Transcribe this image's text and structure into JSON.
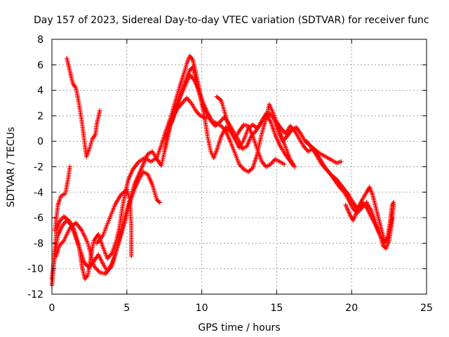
{
  "chart_data": {
    "type": "scatter",
    "title": "Day 157 of 2023, Sidereal Day-to-day VTEC variation (SDTVAR) for receiver func",
    "xlabel": "GPS time / hours",
    "ylabel": "SDTVAR / TECUs",
    "xlim": [
      0,
      25
    ],
    "ylim": [
      -12,
      8
    ],
    "xticks": [
      0,
      5,
      10,
      15,
      20,
      25
    ],
    "yticks": [
      -12,
      -10,
      -8,
      -6,
      -4,
      -2,
      0,
      2,
      4,
      6,
      8
    ],
    "grid": true,
    "marker": "+",
    "color": "#ff0000",
    "series": [
      {
        "name": "track-1",
        "points": [
          [
            0.0,
            -11.3
          ],
          [
            0.1,
            -10.0
          ],
          [
            0.2,
            -8.5
          ],
          [
            0.3,
            -7.0
          ],
          [
            0.5,
            -6.3
          ],
          [
            0.8,
            -5.9
          ],
          [
            1.2,
            -6.3
          ],
          [
            1.5,
            -7.0
          ],
          [
            1.8,
            -8.2
          ],
          [
            2.0,
            -9.8
          ],
          [
            2.2,
            -10.8
          ],
          [
            2.4,
            -10.5
          ],
          [
            2.6,
            -9.0
          ],
          [
            2.8,
            -7.8
          ],
          [
            3.1,
            -7.3
          ],
          [
            3.4,
            -8.3
          ],
          [
            3.7,
            -9.2
          ],
          [
            4.0,
            -8.8
          ],
          [
            4.3,
            -7.8
          ],
          [
            4.5,
            -6.8
          ],
          [
            4.7,
            -5.2
          ],
          [
            4.9,
            -4.0
          ],
          [
            5.1,
            -3.0
          ],
          [
            5.4,
            -2.2
          ],
          [
            5.8,
            -1.6
          ],
          [
            6.2,
            -1.3
          ],
          [
            6.6,
            -1.6
          ],
          [
            7.0,
            -1.3
          ],
          [
            7.3,
            -0.3
          ],
          [
            7.6,
            0.8
          ],
          [
            7.9,
            1.8
          ],
          [
            8.2,
            3.0
          ],
          [
            8.5,
            4.2
          ],
          [
            8.8,
            5.3
          ],
          [
            9.0,
            6.1
          ],
          [
            9.2,
            6.7
          ],
          [
            9.4,
            6.4
          ],
          [
            9.6,
            5.4
          ],
          [
            9.8,
            4.3
          ],
          [
            10.0,
            3.0
          ],
          [
            10.2,
            1.8
          ],
          [
            10.4,
            0.3
          ],
          [
            10.6,
            -0.8
          ],
          [
            10.8,
            -1.3
          ],
          [
            11.0,
            -0.7
          ],
          [
            11.3,
            0.4
          ],
          [
            11.6,
            1.1
          ],
          [
            11.9,
            0.8
          ],
          [
            12.2,
            0.2
          ],
          [
            12.5,
            -0.5
          ],
          [
            12.8,
            0.1
          ],
          [
            13.1,
            1.0
          ],
          [
            13.4,
            1.3
          ],
          [
            13.7,
            1.0
          ],
          [
            14.0,
            1.6
          ],
          [
            14.3,
            2.2
          ],
          [
            14.6,
            1.5
          ],
          [
            14.9,
            0.5
          ],
          [
            15.2,
            -0.3
          ],
          [
            15.5,
            -0.9
          ],
          [
            15.8,
            -1.4
          ],
          [
            16.1,
            -1.9
          ]
        ]
      },
      {
        "name": "track-2",
        "points": [
          [
            0.0,
            -10.8
          ],
          [
            0.2,
            -8.8
          ],
          [
            0.4,
            -7.4
          ],
          [
            0.7,
            -6.6
          ],
          [
            1.0,
            -6.2
          ],
          [
            1.3,
            -6.6
          ],
          [
            1.6,
            -7.6
          ],
          [
            1.9,
            -8.6
          ],
          [
            2.2,
            -9.6
          ],
          [
            2.5,
            -9.9
          ],
          [
            2.8,
            -9.4
          ],
          [
            3.1,
            -8.9
          ],
          [
            3.4,
            -9.6
          ],
          [
            3.7,
            -10.2
          ],
          [
            4.0,
            -9.8
          ],
          [
            4.3,
            -8.6
          ],
          [
            4.6,
            -7.2
          ],
          [
            4.9,
            -5.8
          ],
          [
            5.2,
            -4.6
          ],
          [
            5.5,
            -3.4
          ],
          [
            5.8,
            -2.6
          ],
          [
            6.1,
            -1.8
          ],
          [
            6.4,
            -1.0
          ],
          [
            6.7,
            -0.8
          ],
          [
            7.0,
            -1.4
          ],
          [
            7.3,
            -1.9
          ],
          [
            7.6,
            -0.4
          ],
          [
            7.9,
            1.2
          ],
          [
            8.2,
            2.3
          ],
          [
            8.5,
            3.4
          ],
          [
            8.8,
            4.4
          ],
          [
            9.0,
            5.0
          ],
          [
            9.2,
            5.6
          ],
          [
            9.4,
            5.8
          ],
          [
            9.6,
            4.9
          ],
          [
            9.8,
            3.9
          ],
          [
            10.0,
            3.0
          ],
          [
            10.3,
            2.2
          ],
          [
            10.6,
            1.6
          ],
          [
            10.9,
            1.2
          ],
          [
            11.2,
            1.5
          ],
          [
            11.5,
            1.9
          ],
          [
            11.8,
            1.4
          ],
          [
            12.1,
            0.8
          ],
          [
            12.4,
            0.2
          ],
          [
            12.7,
            -0.6
          ],
          [
            13.0,
            -0.4
          ],
          [
            13.3,
            0.4
          ],
          [
            13.6,
            0.8
          ],
          [
            13.9,
            1.3
          ],
          [
            14.2,
            1.9
          ],
          [
            14.5,
            2.2
          ],
          [
            14.8,
            1.8
          ],
          [
            15.1,
            0.8
          ],
          [
            15.4,
            0.0
          ],
          [
            15.7,
            0.4
          ],
          [
            16.0,
            0.9
          ],
          [
            16.3,
            1.1
          ],
          [
            16.6,
            0.6
          ],
          [
            16.9,
            0.0
          ],
          [
            17.2,
            -0.3
          ],
          [
            17.5,
            -0.6
          ],
          [
            17.8,
            -0.9
          ],
          [
            18.1,
            -1.1
          ],
          [
            18.4,
            -1.3
          ],
          [
            18.7,
            -1.5
          ],
          [
            19.0,
            -1.7
          ],
          [
            19.3,
            -1.6
          ]
        ]
      },
      {
        "name": "track-3",
        "points": [
          [
            1.0,
            6.5
          ],
          [
            1.2,
            5.5
          ],
          [
            1.4,
            4.5
          ],
          [
            1.6,
            4.2
          ],
          [
            1.8,
            3.0
          ],
          [
            2.0,
            1.5
          ],
          [
            2.2,
            -0.3
          ],
          [
            2.3,
            -1.2
          ],
          [
            2.5,
            -0.6
          ],
          [
            2.7,
            0.2
          ],
          [
            2.9,
            0.5
          ],
          [
            3.0,
            1.4
          ],
          [
            3.2,
            2.4
          ]
        ]
      },
      {
        "name": "track-4",
        "points": [
          [
            0.2,
            -7.0
          ],
          [
            0.4,
            -5.0
          ],
          [
            0.6,
            -4.3
          ],
          [
            0.9,
            -4.1
          ],
          [
            1.1,
            -2.8
          ],
          [
            1.2,
            -2.0
          ]
        ]
      },
      {
        "name": "track-5",
        "points": [
          [
            0.3,
            -9.0
          ],
          [
            0.5,
            -8.2
          ],
          [
            0.8,
            -7.8
          ],
          [
            1.2,
            -6.8
          ],
          [
            1.6,
            -6.4
          ],
          [
            2.0,
            -7.0
          ],
          [
            2.4,
            -8.0
          ],
          [
            2.8,
            -9.8
          ],
          [
            3.2,
            -10.3
          ],
          [
            3.6,
            -10.4
          ],
          [
            4.0,
            -9.6
          ],
          [
            4.3,
            -8.6
          ],
          [
            4.6,
            -7.4
          ],
          [
            4.9,
            -6.2
          ],
          [
            5.2,
            -4.8
          ],
          [
            5.5,
            -3.8
          ],
          [
            5.8,
            -3.0
          ],
          [
            6.1,
            -2.4
          ],
          [
            6.4,
            -2.6
          ],
          [
            6.7,
            -3.4
          ],
          [
            7.0,
            -4.6
          ],
          [
            7.2,
            -4.8
          ]
        ]
      },
      {
        "name": "track-6",
        "points": [
          [
            3.0,
            -8.0
          ],
          [
            3.4,
            -7.4
          ],
          [
            3.8,
            -6.2
          ],
          [
            4.2,
            -5.0
          ],
          [
            4.6,
            -4.2
          ],
          [
            5.0,
            -3.8
          ],
          [
            5.2,
            -4.6
          ],
          [
            5.3,
            -6.8
          ],
          [
            5.3,
            -9.0
          ]
        ]
      },
      {
        "name": "track-7",
        "points": [
          [
            8.0,
            1.5
          ],
          [
            8.3,
            2.6
          ],
          [
            8.6,
            3.6
          ],
          [
            8.9,
            4.4
          ],
          [
            9.2,
            5.2
          ],
          [
            9.5,
            4.8
          ],
          [
            9.8,
            4.0
          ],
          [
            10.1,
            3.0
          ],
          [
            10.4,
            2.2
          ],
          [
            10.7,
            1.6
          ],
          [
            11.0,
            1.4
          ],
          [
            11.3,
            1.2
          ],
          [
            11.6,
            0.8
          ],
          [
            11.9,
            0.0
          ],
          [
            12.2,
            -0.9
          ],
          [
            12.5,
            -1.8
          ],
          [
            12.8,
            -2.2
          ],
          [
            13.1,
            -2.4
          ],
          [
            13.4,
            -2.1
          ],
          [
            13.7,
            -1.0
          ],
          [
            14.0,
            0.6
          ],
          [
            14.3,
            1.8
          ],
          [
            14.5,
            2.9
          ],
          [
            14.7,
            2.4
          ],
          [
            15.0,
            1.5
          ],
          [
            15.3,
            0.5
          ],
          [
            15.6,
            -0.5
          ],
          [
            15.9,
            -1.4
          ],
          [
            16.2,
            -2.0
          ]
        ]
      },
      {
        "name": "track-8",
        "points": [
          [
            11.0,
            3.5
          ],
          [
            11.3,
            3.2
          ],
          [
            11.6,
            2.0
          ],
          [
            11.9,
            0.8
          ],
          [
            12.2,
            0.2
          ],
          [
            12.5,
            0.8
          ],
          [
            12.8,
            1.3
          ],
          [
            13.1,
            1.2
          ],
          [
            13.4,
            0.4
          ],
          [
            13.7,
            -0.6
          ],
          [
            14.0,
            -1.6
          ],
          [
            14.3,
            -2.0
          ],
          [
            14.6,
            -1.8
          ],
          [
            14.9,
            -1.4
          ],
          [
            15.2,
            -1.6
          ],
          [
            15.5,
            -1.8
          ]
        ]
      },
      {
        "name": "track-9",
        "points": [
          [
            15.0,
            1.5
          ],
          [
            15.3,
            1.0
          ],
          [
            15.6,
            0.6
          ],
          [
            15.9,
            1.2
          ],
          [
            16.2,
            0.8
          ],
          [
            16.5,
            0.2
          ],
          [
            16.8,
            -0.4
          ],
          [
            17.1,
            -0.8
          ],
          [
            17.4,
            -0.6
          ],
          [
            17.7,
            -1.2
          ],
          [
            18.0,
            -1.8
          ],
          [
            18.3,
            -2.2
          ],
          [
            18.6,
            -2.6
          ],
          [
            18.9,
            -3.1
          ],
          [
            19.2,
            -3.6
          ],
          [
            19.5,
            -4.0
          ],
          [
            19.8,
            -4.6
          ],
          [
            20.1,
            -5.3
          ],
          [
            20.4,
            -5.6
          ],
          [
            20.7,
            -5.2
          ],
          [
            21.0,
            -4.8
          ],
          [
            21.3,
            -5.4
          ],
          [
            21.6,
            -6.4
          ],
          [
            21.9,
            -7.4
          ],
          [
            22.1,
            -8.2
          ],
          [
            22.3,
            -8.4
          ],
          [
            22.5,
            -7.8
          ],
          [
            22.7,
            -6.2
          ],
          [
            22.8,
            -5.0
          ]
        ]
      },
      {
        "name": "track-10",
        "points": [
          [
            17.0,
            0.0
          ],
          [
            17.4,
            -0.6
          ],
          [
            17.8,
            -1.2
          ],
          [
            18.2,
            -2.0
          ],
          [
            18.6,
            -2.6
          ],
          [
            19.0,
            -3.0
          ],
          [
            19.4,
            -3.6
          ],
          [
            19.8,
            -4.2
          ],
          [
            20.1,
            -4.8
          ],
          [
            20.4,
            -5.3
          ],
          [
            20.7,
            -4.6
          ],
          [
            21.0,
            -4.0
          ],
          [
            21.2,
            -3.6
          ],
          [
            21.4,
            -4.2
          ],
          [
            21.7,
            -5.6
          ],
          [
            22.0,
            -7.0
          ],
          [
            22.2,
            -7.8
          ],
          [
            22.4,
            -7.6
          ],
          [
            22.6,
            -6.0
          ],
          [
            22.7,
            -5.0
          ],
          [
            22.8,
            -4.8
          ]
        ]
      },
      {
        "name": "track-11",
        "points": [
          [
            19.6,
            -5.0
          ],
          [
            19.9,
            -5.8
          ],
          [
            20.1,
            -6.2
          ],
          [
            20.4,
            -5.4
          ],
          [
            20.7,
            -4.8
          ],
          [
            21.0,
            -5.2
          ],
          [
            21.3,
            -5.9
          ],
          [
            21.6,
            -6.6
          ],
          [
            21.9,
            -7.4
          ],
          [
            22.2,
            -8.0
          ],
          [
            22.5,
            -7.4
          ],
          [
            22.7,
            -6.0
          ]
        ]
      },
      {
        "name": "track-12",
        "points": [
          [
            7.5,
            -0.8
          ],
          [
            7.7,
            0.5
          ],
          [
            7.9,
            1.4
          ],
          [
            8.1,
            1.9
          ],
          [
            8.4,
            2.6
          ],
          [
            8.7,
            3.0
          ],
          [
            9.0,
            3.4
          ],
          [
            9.3,
            3.0
          ],
          [
            9.6,
            2.4
          ],
          [
            9.9,
            2.0
          ],
          [
            10.2,
            1.8
          ],
          [
            10.5,
            2.0
          ]
        ]
      }
    ]
  }
}
